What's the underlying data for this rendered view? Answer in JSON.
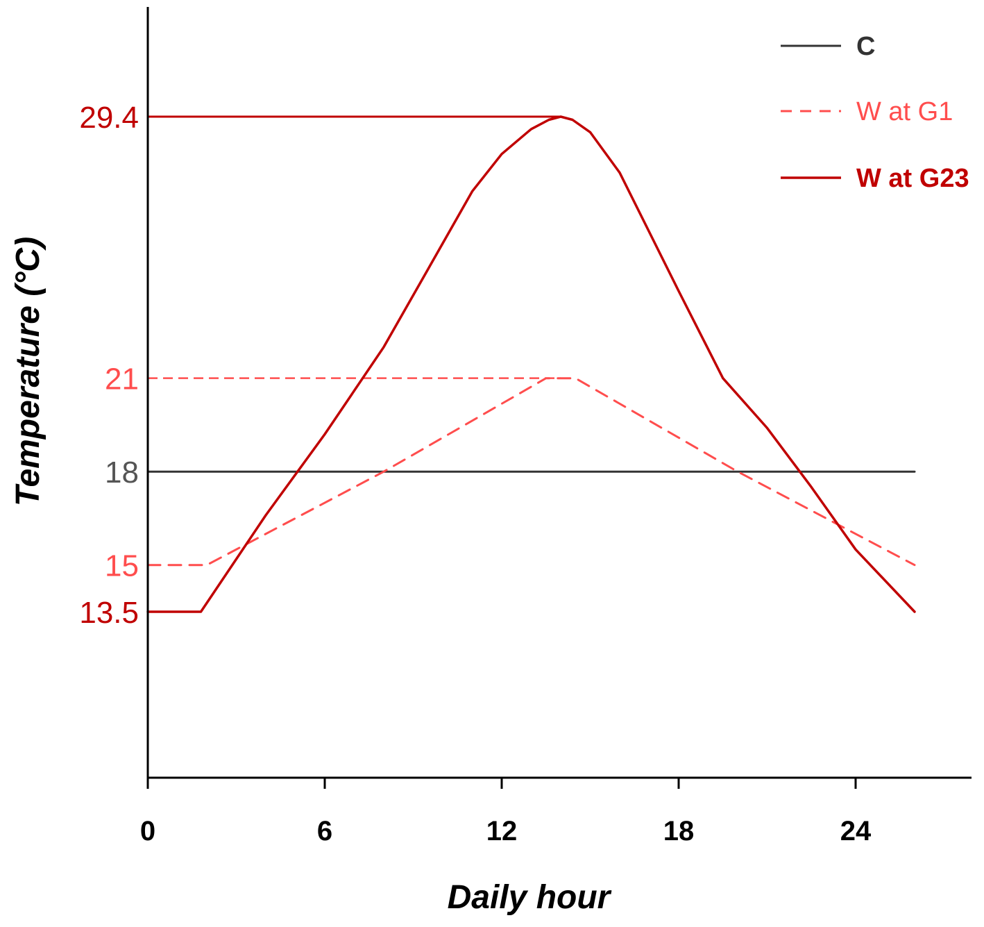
{
  "chart_data": {
    "type": "line",
    "xlabel": "Daily hour",
    "ylabel": "Temperature (°C)",
    "xlim": [
      0,
      28.4
    ],
    "ylim": [
      7,
      35.4
    ],
    "xticks": [
      0,
      6,
      12,
      18,
      24
    ],
    "yticks": [
      {
        "value": 29.4,
        "label": "29.4",
        "color": "#c00000"
      },
      {
        "value": 21,
        "label": "21",
        "color": "#ff4d4d"
      },
      {
        "value": 18,
        "label": "18",
        "color": "#555555"
      },
      {
        "value": 15,
        "label": "15",
        "color": "#ff4d4d"
      },
      {
        "value": 13.5,
        "label": "13.5",
        "color": "#c00000"
      }
    ],
    "reference_lines": [
      {
        "y": 29.4,
        "x_to": 14,
        "color": "#c00000",
        "style": "solid"
      },
      {
        "y": 21,
        "x_to": 14,
        "color": "#ff4d4d",
        "style": "dashed"
      }
    ],
    "series": [
      {
        "name": "C",
        "color": "#333333",
        "style": "solid",
        "x": [
          0,
          26
        ],
        "y": [
          18,
          18
        ]
      },
      {
        "name": "W at G1",
        "color": "#ff4d4d",
        "style": "dashed",
        "x": [
          0,
          2,
          8,
          13.5,
          14.5,
          20,
          26
        ],
        "y": [
          15,
          15,
          18,
          21,
          21,
          18,
          15
        ]
      },
      {
        "name": "W at G23",
        "color": "#c00000",
        "style": "solid",
        "x": [
          0,
          1.8,
          4,
          6,
          8,
          9.5,
          11,
          12,
          13,
          13.6,
          14,
          14.4,
          15,
          16,
          17,
          18,
          19.5,
          21,
          22.5,
          24,
          26
        ],
        "y": [
          13.5,
          13.5,
          16.6,
          19.2,
          22,
          24.5,
          27,
          28.2,
          29.0,
          29.3,
          29.4,
          29.3,
          28.9,
          27.6,
          25.7,
          23.8,
          21.0,
          19.4,
          17.5,
          15.5,
          13.5
        ]
      }
    ],
    "legend": {
      "position": "top-right",
      "entries": [
        "C",
        "W at G1",
        "W at G23"
      ]
    }
  }
}
